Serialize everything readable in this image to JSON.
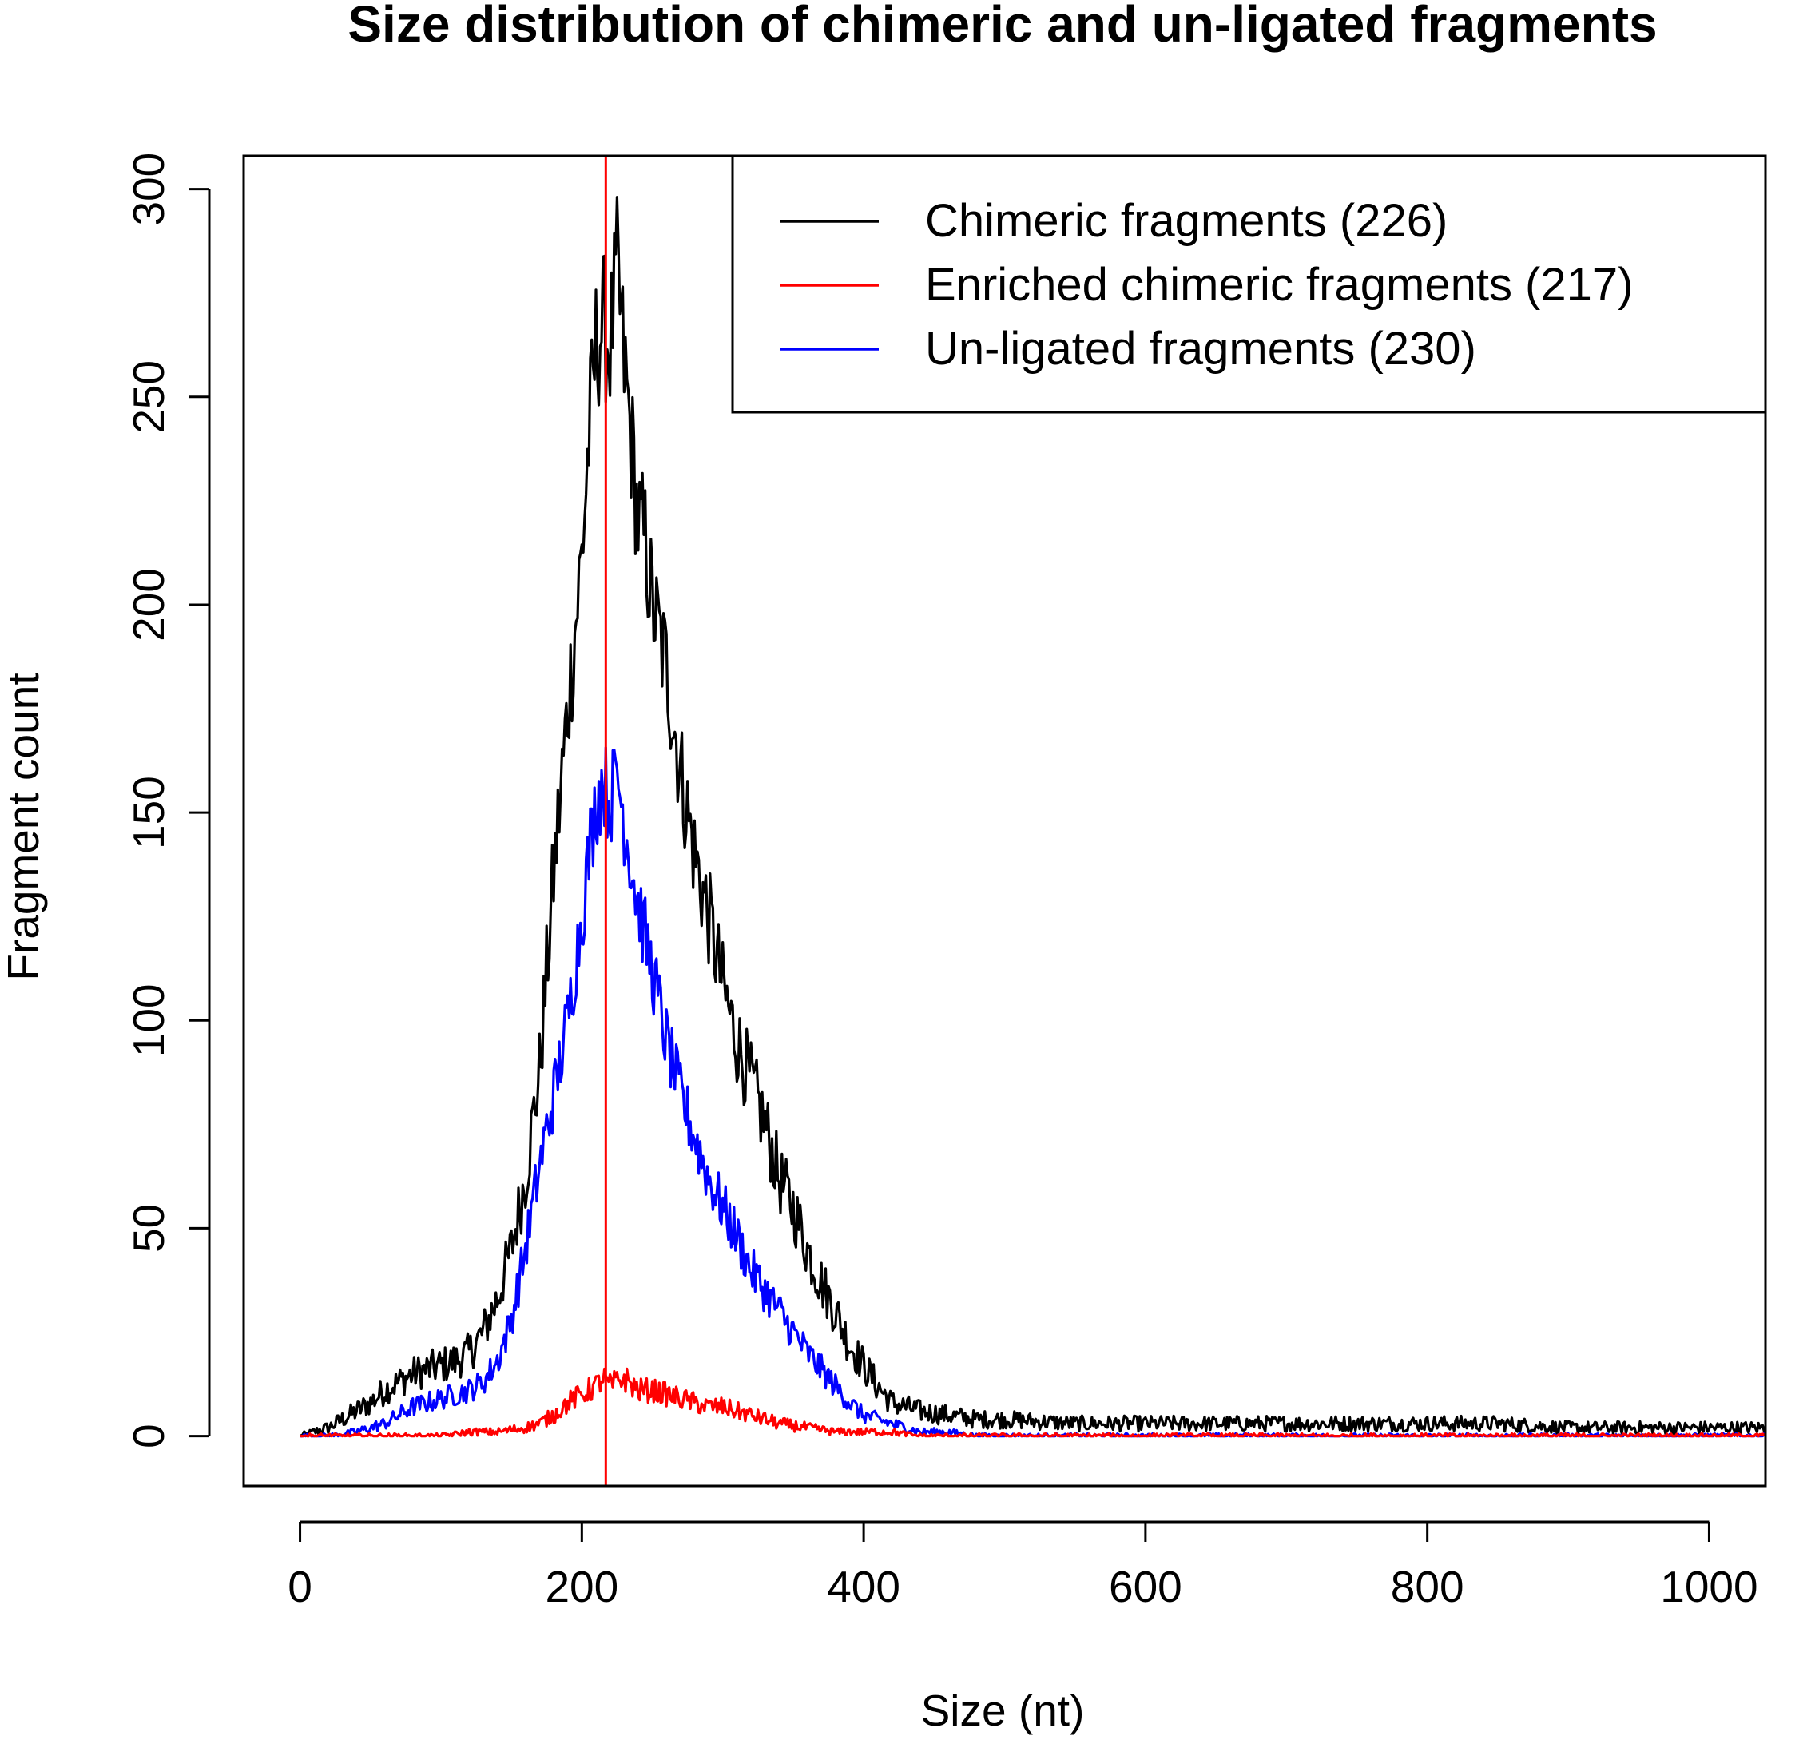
{
  "chart_data": {
    "type": "line",
    "title": "Size distribution of chimeric and un-ligated fragments",
    "xlabel": "Size (nt)",
    "ylabel": "Fragment count",
    "xlim": [
      -40,
      1040
    ],
    "ylim": [
      -12,
      308
    ],
    "x_ticks": [
      0,
      200,
      400,
      600,
      800,
      1000
    ],
    "x_tick_labels": [
      "0",
      "200",
      "400",
      "600",
      "800",
      "1000"
    ],
    "y_ticks": [
      0,
      50,
      100,
      150,
      200,
      250,
      300
    ],
    "y_tick_labels": [
      "0",
      "50",
      "100",
      "150",
      "200",
      "250",
      "300"
    ],
    "grid": false,
    "legend_position": "top-right",
    "vline": {
      "x": 217,
      "color": "#ff0000"
    },
    "series": [
      {
        "name": "Chimeric fragments (226)",
        "color": "#000000",
        "x": [
          0,
          10,
          20,
          30,
          40,
          50,
          60,
          70,
          80,
          90,
          100,
          110,
          120,
          130,
          140,
          150,
          160,
          170,
          180,
          190,
          200,
          205,
          210,
          215,
          220,
          225,
          230,
          235,
          240,
          245,
          250,
          260,
          270,
          280,
          290,
          300,
          310,
          320,
          330,
          340,
          350,
          360,
          370,
          380,
          390,
          400,
          410,
          420,
          440,
          460,
          480,
          500,
          550,
          600,
          650,
          700,
          750,
          800,
          850,
          900,
          950,
          1000,
          1040
        ],
        "y": [
          0,
          1,
          2,
          4,
          6,
          8,
          11,
          13,
          15,
          16,
          17,
          18,
          20,
          25,
          33,
          45,
          62,
          88,
          135,
          175,
          212,
          240,
          262,
          268,
          262,
          280,
          258,
          240,
          220,
          215,
          200,
          185,
          160,
          140,
          125,
          108,
          95,
          85,
          75,
          62,
          55,
          45,
          37,
          30,
          22,
          17,
          12,
          8,
          6,
          5,
          4,
          4,
          3,
          3,
          3,
          3,
          3,
          3,
          3,
          2,
          2,
          2,
          2
        ]
      },
      {
        "name": "Enriched chimeric fragments (217)",
        "color": "#ff0000",
        "x": [
          0,
          60,
          100,
          120,
          140,
          160,
          170,
          180,
          190,
          200,
          210,
          215,
          220,
          230,
          240,
          250,
          260,
          270,
          280,
          290,
          300,
          310,
          320,
          330,
          340,
          360,
          380,
          400,
          420,
          440,
          460,
          500,
          600,
          700,
          800,
          900,
          1040
        ],
        "y": [
          0,
          0,
          0,
          1,
          1,
          2,
          3,
          5,
          8,
          10,
          12,
          14,
          12,
          14,
          11,
          11,
          10,
          9,
          8,
          7,
          7,
          6,
          5,
          4,
          3,
          2,
          1,
          1,
          1,
          0,
          0,
          0,
          0,
          0,
          0,
          0,
          0
        ]
      },
      {
        "name": "Un-ligated fragments (230)",
        "color": "#0000ff",
        "x": [
          0,
          20,
          40,
          60,
          70,
          80,
          90,
          100,
          110,
          120,
          130,
          140,
          150,
          160,
          170,
          180,
          190,
          200,
          205,
          210,
          215,
          220,
          225,
          230,
          235,
          240,
          250,
          260,
          270,
          280,
          290,
          300,
          310,
          320,
          330,
          340,
          350,
          360,
          370,
          380,
          390,
          400,
          420,
          440,
          460,
          480,
          500,
          600,
          700,
          800,
          900,
          1040
        ],
        "y": [
          0,
          0,
          1,
          3,
          5,
          7,
          8,
          9,
          10,
          11,
          13,
          18,
          28,
          45,
          65,
          82,
          100,
          125,
          140,
          152,
          158,
          152,
          160,
          148,
          138,
          128,
          112,
          95,
          82,
          72,
          62,
          55,
          48,
          40,
          35,
          30,
          25,
          20,
          16,
          12,
          8,
          5,
          3,
          1,
          1,
          0,
          0,
          0,
          0,
          0,
          0,
          0
        ]
      }
    ]
  }
}
